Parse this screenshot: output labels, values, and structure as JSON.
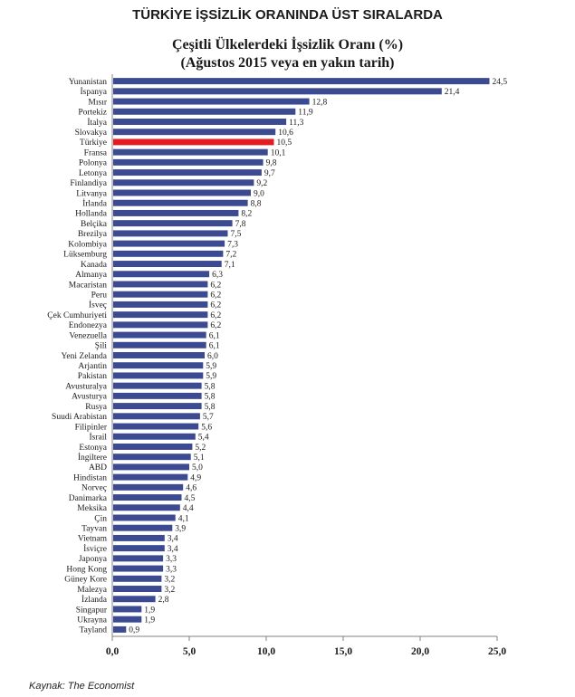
{
  "header": {
    "title": "TÜRKİYE İŞSİZLİK ORANINDA ÜST SIRALARDA"
  },
  "source": "Kaynak: The Economist",
  "colors": {
    "bar": "#3b4a91",
    "highlight": "#e31b23",
    "axis": "#808080"
  },
  "chart_data": {
    "type": "bar",
    "orientation": "horizontal",
    "title": "Çeşitli Ülkelerdeki İşsizlik Oranı (%)",
    "subtitle": "(Ağustos 2015 veya en yakın tarih)",
    "xlim": [
      0,
      25
    ],
    "xticks": [
      0,
      5,
      10,
      15,
      20,
      25
    ],
    "xtick_labels": [
      "0,0",
      "5,0",
      "10,0",
      "15,0",
      "20,0",
      "25,0"
    ],
    "grid": false,
    "highlight_category": "Türkiye",
    "categories": [
      "Yunanistan",
      "İspanya",
      "Mısır",
      "Portekiz",
      "İtalya",
      "Slovakya",
      "Türkiye",
      "Fransa",
      "Polonya",
      "Letonya",
      "Finlandiya",
      "Litvanya",
      "İrlanda",
      "Hollanda",
      "Belçika",
      "Brezilya",
      "Kolombiya",
      "Lüksemburg",
      "Kanada",
      "Almanya",
      "Macaristan",
      "Peru",
      "İsveç",
      "Çek Cumhuriyeti",
      "Endonezya",
      "Venezuella",
      "Şili",
      "Yeni Zelanda",
      "Arjantin",
      "Pakistan",
      "Avusturalya",
      "Avusturya",
      "Rusya",
      "Suudi Arabistan",
      "Filipinler",
      "İsrail",
      "Estonya",
      "İngiltere",
      "ABD",
      "Hindistan",
      "Norveç",
      "Danimarka",
      "Meksika",
      "Çin",
      "Tayvan",
      "Vietnam",
      "İsviçre",
      "Japonya",
      "Hong Kong",
      "Güney Kore",
      "Malezya",
      "İzlanda",
      "Singapur",
      "Ukrayna",
      "Tayland"
    ],
    "values": [
      24.5,
      21.4,
      12.8,
      11.9,
      11.3,
      10.6,
      10.5,
      10.1,
      9.8,
      9.7,
      9.2,
      9.0,
      8.8,
      8.2,
      7.8,
      7.5,
      7.3,
      7.2,
      7.1,
      6.3,
      6.2,
      6.2,
      6.2,
      6.2,
      6.2,
      6.1,
      6.1,
      6.0,
      5.9,
      5.9,
      5.8,
      5.8,
      5.8,
      5.7,
      5.6,
      5.4,
      5.2,
      5.1,
      5.0,
      4.9,
      4.6,
      4.5,
      4.4,
      4.1,
      3.9,
      3.4,
      3.4,
      3.3,
      3.3,
      3.2,
      3.2,
      2.8,
      1.9,
      1.9,
      0.9
    ],
    "value_labels": [
      "24,5",
      "21,4",
      "12,8",
      "11,9",
      "11,3",
      "10,6",
      "10,5",
      "10,1",
      "9,8",
      "9,7",
      "9,2",
      "9,0",
      "8,8",
      "8,2",
      "7,8",
      "7,5",
      "7,3",
      "7,2",
      "7,1",
      "6,3",
      "6,2",
      "6,2",
      "6,2",
      "6,2",
      "6,2",
      "6,1",
      "6,1",
      "6,0",
      "5,9",
      "5,9",
      "5,8",
      "5,8",
      "5,8",
      "5,7",
      "5,6",
      "5,4",
      "5,2",
      "5,1",
      "5,0",
      "4,9",
      "4,6",
      "4,5",
      "4,4",
      "4,1",
      "3,9",
      "3,4",
      "3,4",
      "3,3",
      "3,3",
      "3,2",
      "3,2",
      "2,8",
      "1,9",
      "1,9",
      "0,9"
    ]
  }
}
